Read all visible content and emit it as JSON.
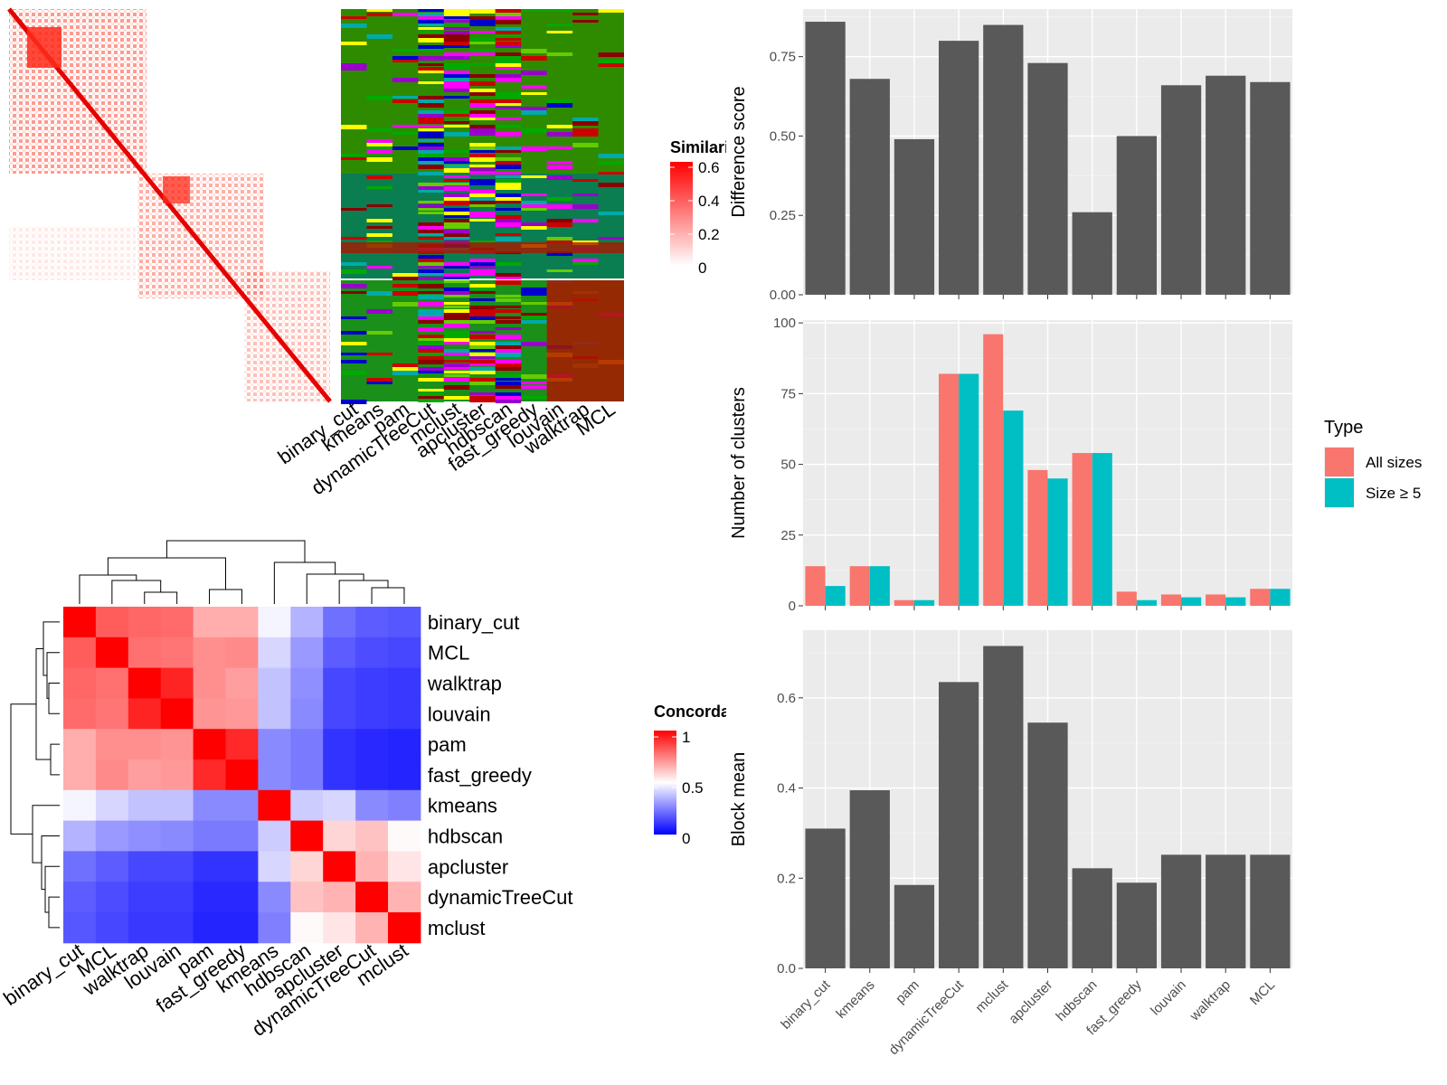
{
  "chart_data": [
    {
      "type": "heatmap",
      "legend_title": "Similarity",
      "legend_ticks": [
        "0.6",
        "0.4",
        "0.2",
        "0"
      ],
      "colors": {
        "low": "#ffffff",
        "high": "#ff0000"
      },
      "annotation_columns": [
        "binary_cut",
        "kmeans",
        "pam",
        "dynamicTreeCut",
        "mclust",
        "apcluster",
        "hdbscan",
        "fast_greedy",
        "louvain",
        "walktrap",
        "MCL"
      ]
    },
    {
      "type": "bar",
      "ylabel": "Difference score",
      "categories": [
        "binary_cut",
        "kmeans",
        "pam",
        "dynamicTreeCut",
        "mclust",
        "apcluster",
        "hdbscan",
        "fast_greedy",
        "louvain",
        "walktrap",
        "MCL"
      ],
      "values": [
        0.86,
        0.68,
        0.49,
        0.8,
        0.85,
        0.73,
        0.26,
        0.5,
        0.66,
        0.69,
        0.67
      ],
      "ylim": [
        0,
        0.9
      ],
      "yticks": [
        "0.00",
        "0.25",
        "0.50",
        "0.75"
      ],
      "ytick_values": [
        0,
        0.25,
        0.5,
        0.75
      ],
      "bar_color": "#595959"
    },
    {
      "type": "bar",
      "ylabel": "Number of clusters",
      "categories": [
        "binary_cut",
        "kmeans",
        "pam",
        "dynamicTreeCut",
        "mclust",
        "apcluster",
        "hdbscan",
        "fast_greedy",
        "louvain",
        "walktrap",
        "MCL"
      ],
      "series": [
        {
          "name": "All sizes",
          "color": "#f8766d",
          "values": [
            14,
            14,
            2,
            82,
            96,
            48,
            54,
            5,
            4,
            4,
            6
          ]
        },
        {
          "name": "Size ≥ 5",
          "color": "#00bfc4",
          "values": [
            7,
            14,
            2,
            82,
            69,
            45,
            54,
            2,
            3,
            3,
            6
          ]
        }
      ],
      "ylim": [
        0,
        101
      ],
      "yticks": [
        "0",
        "25",
        "50",
        "75",
        "100"
      ],
      "ytick_values": [
        0,
        25,
        50,
        75,
        100
      ],
      "legend": {
        "title": "Type",
        "position": "right"
      }
    },
    {
      "type": "bar",
      "ylabel": "Block mean",
      "categories": [
        "binary_cut",
        "kmeans",
        "pam",
        "dynamicTreeCut",
        "mclust",
        "apcluster",
        "hdbscan",
        "fast_greedy",
        "louvain",
        "walktrap",
        "MCL"
      ],
      "values": [
        0.31,
        0.395,
        0.185,
        0.635,
        0.715,
        0.545,
        0.222,
        0.19,
        0.252,
        0.252,
        0.252
      ],
      "ylim": [
        0,
        0.75
      ],
      "yticks": [
        "0.0",
        "0.2",
        "0.4",
        "0.6"
      ],
      "ytick_values": [
        0,
        0.2,
        0.4,
        0.6
      ],
      "bar_color": "#595959"
    },
    {
      "type": "heatmap",
      "legend_title": "Concordance",
      "legend_ticks": [
        "1",
        "0.5",
        "0"
      ],
      "colors": {
        "low": "#0000ff",
        "mid": "#ffffff",
        "high": "#ff0000"
      },
      "row_labels": [
        "binary_cut",
        "MCL",
        "walktrap",
        "louvain",
        "pam",
        "fast_greedy",
        "kmeans",
        "hdbscan",
        "apcluster",
        "dynamicTreeCut",
        "mclust"
      ],
      "col_labels": [
        "binary_cut",
        "MCL",
        "walktrap",
        "louvain",
        "pam",
        "fast_greedy",
        "kmeans",
        "hdbscan",
        "apcluster",
        "dynamicTreeCut",
        "mclust"
      ],
      "matrix": [
        [
          1.0,
          0.82,
          0.8,
          0.79,
          0.66,
          0.66,
          0.48,
          0.35,
          0.22,
          0.18,
          0.17
        ],
        [
          0.82,
          1.0,
          0.78,
          0.77,
          0.72,
          0.73,
          0.42,
          0.3,
          0.18,
          0.15,
          0.14
        ],
        [
          0.8,
          0.78,
          1.0,
          0.93,
          0.72,
          0.69,
          0.38,
          0.28,
          0.14,
          0.12,
          0.11
        ],
        [
          0.79,
          0.77,
          0.93,
          1.0,
          0.71,
          0.7,
          0.38,
          0.27,
          0.14,
          0.12,
          0.11
        ],
        [
          0.66,
          0.72,
          0.72,
          0.71,
          1.0,
          0.92,
          0.27,
          0.24,
          0.1,
          0.08,
          0.07
        ],
        [
          0.66,
          0.73,
          0.69,
          0.7,
          0.92,
          1.0,
          0.27,
          0.24,
          0.1,
          0.08,
          0.07
        ],
        [
          0.48,
          0.42,
          0.38,
          0.38,
          0.27,
          0.27,
          1.0,
          0.4,
          0.42,
          0.27,
          0.25
        ],
        [
          0.35,
          0.3,
          0.28,
          0.27,
          0.24,
          0.24,
          0.4,
          1.0,
          0.58,
          0.62,
          0.51
        ],
        [
          0.22,
          0.18,
          0.14,
          0.14,
          0.1,
          0.1,
          0.42,
          0.58,
          1.0,
          0.65,
          0.55
        ],
        [
          0.18,
          0.15,
          0.12,
          0.12,
          0.08,
          0.08,
          0.27,
          0.62,
          0.65,
          1.0,
          0.65
        ],
        [
          0.17,
          0.14,
          0.11,
          0.11,
          0.07,
          0.07,
          0.25,
          0.51,
          0.55,
          0.65,
          1.0
        ]
      ]
    }
  ]
}
